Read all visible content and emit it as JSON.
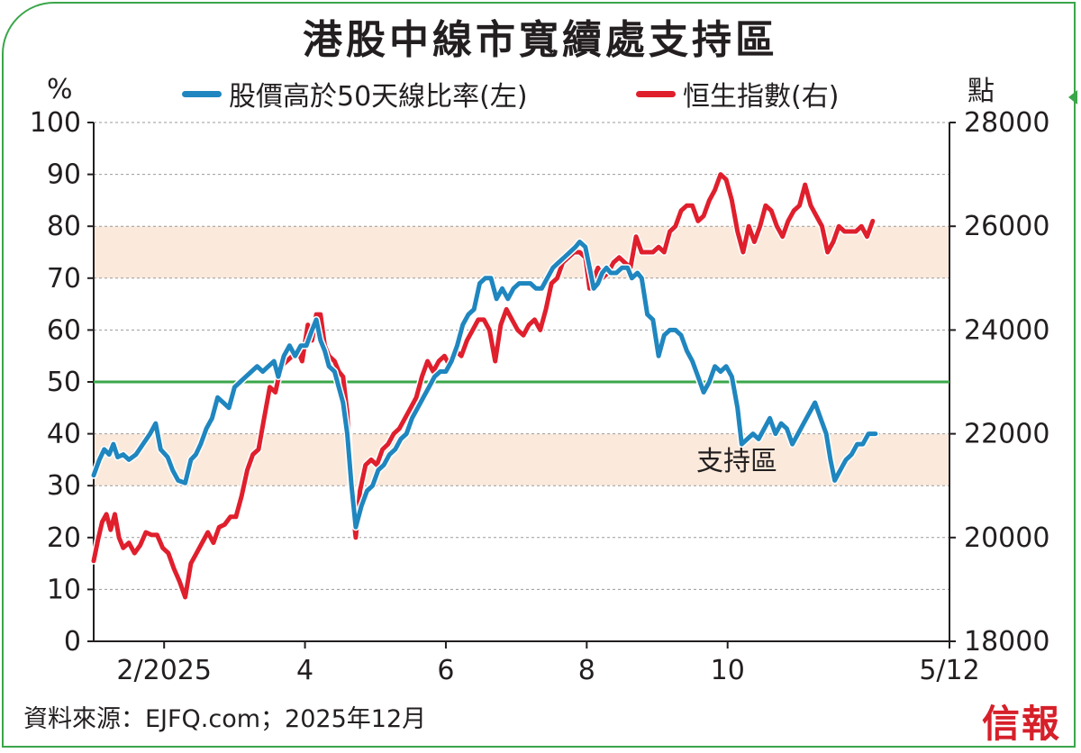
{
  "header": {
    "title": "港股中線市寬續處支持區"
  },
  "footer": {
    "source": "資料來源：EJFQ.com；2025年12月",
    "logo_text": "信報"
  },
  "colors": {
    "frame": "#3aa64a",
    "blue_series": "#1f86bf",
    "red_series": "#e01f2d",
    "threshold_line": "#3aa64a",
    "band_fill": "#fbeadc",
    "logo": "#d6202a"
  },
  "chart_data": {
    "type": "line",
    "left_axis_unit": "%",
    "right_axis_unit": "點",
    "left_ylim": [
      0,
      100
    ],
    "right_ylim": [
      18000,
      28000
    ],
    "left_ticks": [
      "0",
      "10",
      "20",
      "30",
      "40",
      "50",
      "60",
      "70",
      "80",
      "90",
      "100"
    ],
    "right_ticks": [
      "18000",
      "20000",
      "22000",
      "24000",
      "26000",
      "28000"
    ],
    "x_tick_labels": [
      "2/2025",
      "4",
      "6",
      "8",
      "10",
      "5/12"
    ],
    "x_domain_months": [
      0,
      12.15
    ],
    "x_tick_positions_months": [
      1.0,
      3.0,
      5.0,
      7.0,
      9.0,
      12.15
    ],
    "grid": "horizontal dashed",
    "threshold_value": 50,
    "bands": [
      {
        "from": 70,
        "to": 80
      },
      {
        "from": 30,
        "to": 40
      }
    ],
    "band_label": "支持區",
    "series": [
      {
        "name": "股價高於50天線比率(左)",
        "axis": "left",
        "color": "#1f86bf",
        "points": [
          [
            0.0,
            32
          ],
          [
            0.08,
            35
          ],
          [
            0.15,
            37
          ],
          [
            0.22,
            36
          ],
          [
            0.28,
            38
          ],
          [
            0.34,
            35.5
          ],
          [
            0.42,
            36
          ],
          [
            0.5,
            35
          ],
          [
            0.6,
            36
          ],
          [
            0.7,
            38
          ],
          [
            0.8,
            40
          ],
          [
            0.88,
            42
          ],
          [
            0.95,
            37
          ],
          [
            1.05,
            35.5
          ],
          [
            1.12,
            33
          ],
          [
            1.2,
            31
          ],
          [
            1.3,
            30.5
          ],
          [
            1.38,
            35
          ],
          [
            1.45,
            36
          ],
          [
            1.52,
            38
          ],
          [
            1.6,
            41
          ],
          [
            1.68,
            43
          ],
          [
            1.76,
            47
          ],
          [
            1.84,
            46
          ],
          [
            1.92,
            45
          ],
          [
            2.0,
            49
          ],
          [
            2.08,
            50
          ],
          [
            2.16,
            51
          ],
          [
            2.24,
            52
          ],
          [
            2.32,
            53
          ],
          [
            2.4,
            52
          ],
          [
            2.48,
            53
          ],
          [
            2.56,
            54
          ],
          [
            2.62,
            51
          ],
          [
            2.7,
            55
          ],
          [
            2.78,
            57
          ],
          [
            2.86,
            55
          ],
          [
            2.94,
            57
          ],
          [
            3.02,
            57
          ],
          [
            3.1,
            60
          ],
          [
            3.16,
            62
          ],
          [
            3.22,
            58
          ],
          [
            3.28,
            56
          ],
          [
            3.34,
            53
          ],
          [
            3.42,
            52
          ],
          [
            3.48,
            49
          ],
          [
            3.54,
            46
          ],
          [
            3.6,
            40
          ],
          [
            3.66,
            30
          ],
          [
            3.72,
            22
          ],
          [
            3.8,
            26
          ],
          [
            3.88,
            29
          ],
          [
            3.96,
            30
          ],
          [
            4.04,
            33
          ],
          [
            4.12,
            34
          ],
          [
            4.2,
            36
          ],
          [
            4.28,
            37
          ],
          [
            4.36,
            39
          ],
          [
            4.44,
            40
          ],
          [
            4.52,
            43
          ],
          [
            4.6,
            45
          ],
          [
            4.68,
            47
          ],
          [
            4.76,
            49
          ],
          [
            4.84,
            51
          ],
          [
            4.92,
            52
          ],
          [
            5.0,
            52
          ],
          [
            5.08,
            54
          ],
          [
            5.16,
            57
          ],
          [
            5.24,
            61
          ],
          [
            5.32,
            63
          ],
          [
            5.4,
            64
          ],
          [
            5.48,
            69
          ],
          [
            5.56,
            70
          ],
          [
            5.64,
            70
          ],
          [
            5.72,
            66
          ],
          [
            5.8,
            68
          ],
          [
            5.88,
            66
          ],
          [
            5.96,
            68
          ],
          [
            6.04,
            69
          ],
          [
            6.12,
            69
          ],
          [
            6.2,
            69
          ],
          [
            6.28,
            68
          ],
          [
            6.36,
            68
          ],
          [
            6.44,
            70
          ],
          [
            6.52,
            72
          ],
          [
            6.6,
            73
          ],
          [
            6.68,
            74
          ],
          [
            6.76,
            75
          ],
          [
            6.84,
            76
          ],
          [
            6.9,
            77
          ],
          [
            6.98,
            76
          ],
          [
            7.04,
            72
          ],
          [
            7.1,
            68
          ],
          [
            7.16,
            69
          ],
          [
            7.22,
            71
          ],
          [
            7.28,
            72
          ],
          [
            7.34,
            71
          ],
          [
            7.42,
            71
          ],
          [
            7.5,
            72
          ],
          [
            7.58,
            72
          ],
          [
            7.64,
            70
          ],
          [
            7.72,
            71
          ],
          [
            7.78,
            70
          ],
          [
            7.86,
            63
          ],
          [
            7.94,
            62
          ],
          [
            8.02,
            55
          ],
          [
            8.1,
            59
          ],
          [
            8.18,
            60
          ],
          [
            8.26,
            60
          ],
          [
            8.34,
            59
          ],
          [
            8.42,
            56
          ],
          [
            8.5,
            54
          ],
          [
            8.58,
            51
          ],
          [
            8.66,
            48
          ],
          [
            8.74,
            50
          ],
          [
            8.82,
            53
          ],
          [
            8.9,
            52
          ],
          [
            8.98,
            53
          ],
          [
            9.06,
            51
          ],
          [
            9.14,
            45
          ],
          [
            9.2,
            38
          ],
          [
            9.28,
            39
          ],
          [
            9.36,
            40
          ],
          [
            9.44,
            39
          ],
          [
            9.52,
            41
          ],
          [
            9.6,
            43
          ],
          [
            9.68,
            40
          ],
          [
            9.76,
            42
          ],
          [
            9.84,
            41
          ],
          [
            9.92,
            38
          ],
          [
            10.0,
            40
          ],
          [
            10.08,
            42
          ],
          [
            10.16,
            44
          ],
          [
            10.24,
            46
          ],
          [
            10.32,
            43
          ],
          [
            10.4,
            40
          ],
          [
            10.46,
            35
          ],
          [
            10.52,
            31
          ],
          [
            10.6,
            33
          ],
          [
            10.68,
            35
          ],
          [
            10.76,
            36
          ],
          [
            10.84,
            38
          ],
          [
            10.92,
            38
          ],
          [
            11.0,
            40
          ],
          [
            11.1,
            40
          ]
        ]
      },
      {
        "name": "恒生指數(右)",
        "axis": "right",
        "color": "#e01f2d",
        "points": [
          [
            0.0,
            19550
          ],
          [
            0.06,
            19950
          ],
          [
            0.12,
            20300
          ],
          [
            0.18,
            20450
          ],
          [
            0.24,
            20150
          ],
          [
            0.3,
            20450
          ],
          [
            0.36,
            20000
          ],
          [
            0.42,
            19800
          ],
          [
            0.5,
            19900
          ],
          [
            0.58,
            19700
          ],
          [
            0.66,
            19850
          ],
          [
            0.74,
            20100
          ],
          [
            0.82,
            20050
          ],
          [
            0.9,
            20050
          ],
          [
            0.98,
            19800
          ],
          [
            1.06,
            19700
          ],
          [
            1.14,
            19400
          ],
          [
            1.22,
            19150
          ],
          [
            1.3,
            18850
          ],
          [
            1.38,
            19500
          ],
          [
            1.46,
            19700
          ],
          [
            1.54,
            19900
          ],
          [
            1.62,
            20100
          ],
          [
            1.7,
            19900
          ],
          [
            1.78,
            20200
          ],
          [
            1.86,
            20250
          ],
          [
            1.94,
            20400
          ],
          [
            2.02,
            20400
          ],
          [
            2.1,
            20800
          ],
          [
            2.18,
            21300
          ],
          [
            2.26,
            21600
          ],
          [
            2.34,
            21700
          ],
          [
            2.42,
            22300
          ],
          [
            2.5,
            22900
          ],
          [
            2.58,
            22800
          ],
          [
            2.66,
            23300
          ],
          [
            2.74,
            23400
          ],
          [
            2.82,
            23500
          ],
          [
            2.9,
            23600
          ],
          [
            2.96,
            23400
          ],
          [
            3.04,
            24100
          ],
          [
            3.1,
            23800
          ],
          [
            3.16,
            24300
          ],
          [
            3.22,
            24300
          ],
          [
            3.28,
            23700
          ],
          [
            3.34,
            23500
          ],
          [
            3.42,
            23400
          ],
          [
            3.48,
            23200
          ],
          [
            3.54,
            23100
          ],
          [
            3.6,
            22400
          ],
          [
            3.66,
            20800
          ],
          [
            3.72,
            20000
          ],
          [
            3.78,
            20900
          ],
          [
            3.86,
            21400
          ],
          [
            3.94,
            21500
          ],
          [
            4.02,
            21400
          ],
          [
            4.1,
            21700
          ],
          [
            4.18,
            21800
          ],
          [
            4.26,
            22000
          ],
          [
            4.34,
            22100
          ],
          [
            4.42,
            22300
          ],
          [
            4.5,
            22500
          ],
          [
            4.58,
            22700
          ],
          [
            4.66,
            23100
          ],
          [
            4.74,
            23400
          ],
          [
            4.82,
            23200
          ],
          [
            4.9,
            23400
          ],
          [
            4.98,
            23500
          ],
          [
            5.06,
            23300
          ],
          [
            5.14,
            23600
          ],
          [
            5.22,
            23500
          ],
          [
            5.3,
            23800
          ],
          [
            5.38,
            24000
          ],
          [
            5.46,
            24200
          ],
          [
            5.54,
            24200
          ],
          [
            5.62,
            24000
          ],
          [
            5.7,
            23400
          ],
          [
            5.78,
            24100
          ],
          [
            5.86,
            24400
          ],
          [
            5.94,
            24200
          ],
          [
            6.02,
            24000
          ],
          [
            6.1,
            23900
          ],
          [
            6.18,
            24100
          ],
          [
            6.26,
            24200
          ],
          [
            6.34,
            24000
          ],
          [
            6.42,
            24400
          ],
          [
            6.5,
            24900
          ],
          [
            6.58,
            25000
          ],
          [
            6.66,
            25300
          ],
          [
            6.74,
            25400
          ],
          [
            6.82,
            25500
          ],
          [
            6.9,
            25500
          ],
          [
            6.98,
            25400
          ],
          [
            7.04,
            24800
          ],
          [
            7.1,
            25000
          ],
          [
            7.16,
            25200
          ],
          [
            7.22,
            25000
          ],
          [
            7.3,
            25100
          ],
          [
            7.38,
            25300
          ],
          [
            7.46,
            25400
          ],
          [
            7.54,
            25300
          ],
          [
            7.62,
            25200
          ],
          [
            7.7,
            25800
          ],
          [
            7.78,
            25500
          ],
          [
            7.86,
            25500
          ],
          [
            7.94,
            25500
          ],
          [
            8.02,
            25600
          ],
          [
            8.1,
            25500
          ],
          [
            8.18,
            25900
          ],
          [
            8.26,
            26000
          ],
          [
            8.34,
            26300
          ],
          [
            8.42,
            26400
          ],
          [
            8.5,
            26400
          ],
          [
            8.58,
            26100
          ],
          [
            8.66,
            26200
          ],
          [
            8.74,
            26500
          ],
          [
            8.82,
            26700
          ],
          [
            8.9,
            27000
          ],
          [
            8.98,
            26900
          ],
          [
            9.06,
            26500
          ],
          [
            9.14,
            25900
          ],
          [
            9.22,
            25500
          ],
          [
            9.3,
            26000
          ],
          [
            9.38,
            25700
          ],
          [
            9.46,
            26000
          ],
          [
            9.54,
            26400
          ],
          [
            9.62,
            26300
          ],
          [
            9.7,
            26000
          ],
          [
            9.78,
            25800
          ],
          [
            9.86,
            26100
          ],
          [
            9.94,
            26300
          ],
          [
            10.02,
            26400
          ],
          [
            10.1,
            26800
          ],
          [
            10.18,
            26400
          ],
          [
            10.26,
            26200
          ],
          [
            10.34,
            26000
          ],
          [
            10.42,
            25500
          ],
          [
            10.5,
            25700
          ],
          [
            10.58,
            26000
          ],
          [
            10.66,
            25900
          ],
          [
            10.74,
            25900
          ],
          [
            10.82,
            25900
          ],
          [
            10.9,
            26000
          ],
          [
            10.98,
            25800
          ],
          [
            11.06,
            26100
          ]
        ]
      }
    ]
  }
}
